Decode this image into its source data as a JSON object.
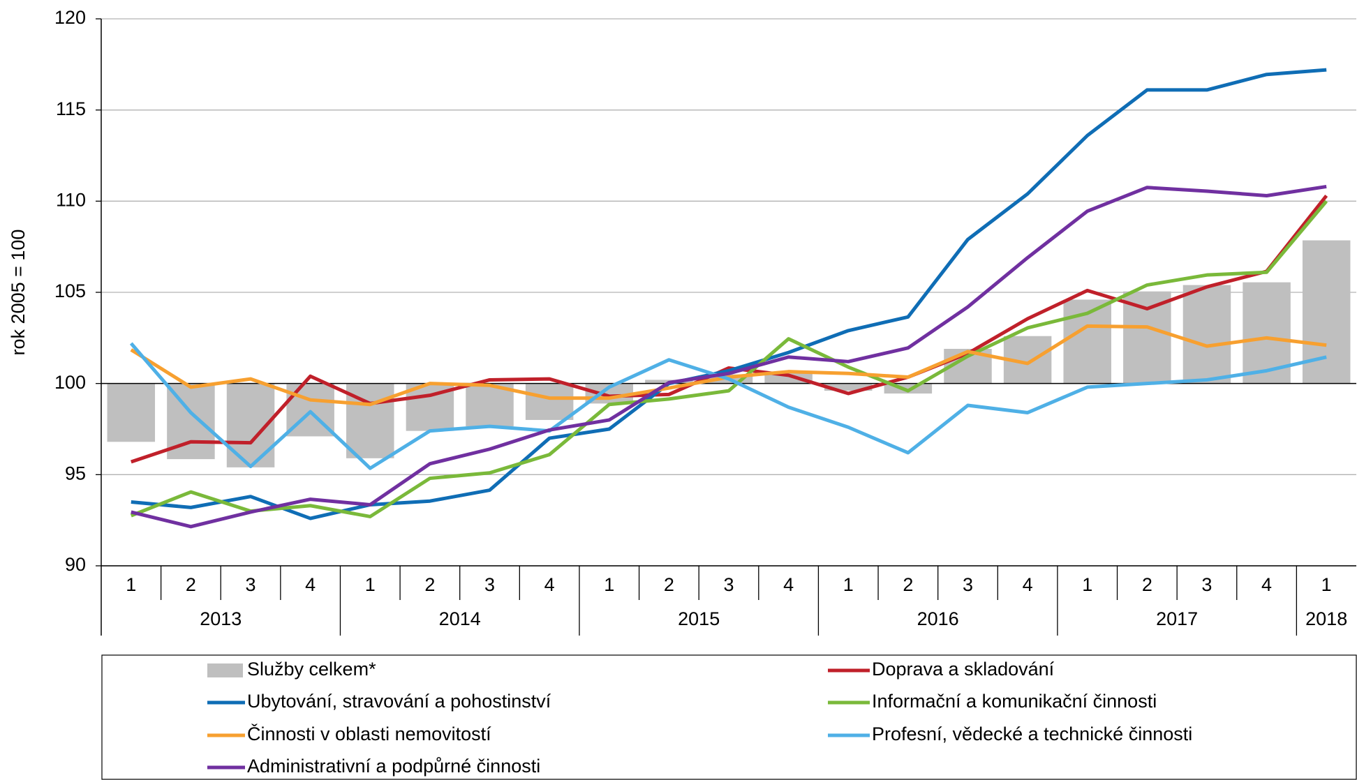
{
  "chart_data": {
    "type": "line",
    "y_label": "rok 2005 = 100",
    "categories": [
      "1",
      "2",
      "3",
      "4",
      "1",
      "2",
      "3",
      "4",
      "1",
      "2",
      "3",
      "4",
      "1",
      "2",
      "3",
      "4",
      "1",
      "2",
      "3",
      "4",
      "1"
    ],
    "groups": [
      "2013",
      "2014",
      "2015",
      "2016",
      "2017",
      "2018"
    ],
    "ylim": [
      90,
      120
    ],
    "yticks": [
      90,
      95,
      100,
      105,
      110,
      115,
      120
    ],
    "grid": true,
    "bar_base": 100,
    "series": [
      {
        "name": "Služby celkem*",
        "type": "bar",
        "color": "#bfbfbf",
        "values": [
          96.8,
          95.85,
          95.4,
          97.1,
          95.9,
          97.4,
          97.65,
          98.0,
          98.9,
          100.2,
          100.5,
          100.6,
          99.6,
          99.45,
          101.9,
          102.6,
          104.6,
          105.05,
          105.4,
          105.55,
          107.85
        ]
      },
      {
        "name": "Doprava a skladování",
        "color": "#c0202a",
        "values": [
          95.7,
          96.8,
          96.75,
          100.4,
          98.9,
          99.35,
          100.2,
          100.25,
          99.3,
          99.4,
          100.85,
          100.45,
          99.45,
          100.35,
          101.65,
          103.55,
          105.1,
          104.1,
          105.3,
          106.15,
          110.3
        ]
      },
      {
        "name": "Ubytování, stravování a pohostinství",
        "color": "#0f6db5",
        "values": [
          93.5,
          93.2,
          93.8,
          92.6,
          93.35,
          93.55,
          94.15,
          97.0,
          97.5,
          100.0,
          100.7,
          101.7,
          102.9,
          103.65,
          107.9,
          110.4,
          113.6,
          116.1,
          116.1,
          116.95,
          117.2
        ]
      },
      {
        "name": "Informační a komunikační činnosti",
        "color": "#7ab93a",
        "values": [
          92.75,
          94.05,
          93.0,
          93.3,
          92.7,
          94.8,
          95.1,
          96.1,
          98.85,
          99.15,
          99.6,
          102.45,
          100.9,
          99.6,
          101.5,
          103.05,
          103.85,
          105.4,
          105.95,
          106.1,
          110.0
        ]
      },
      {
        "name": "Činnosti v oblasti nemovitostí",
        "color": "#f7a030",
        "values": [
          101.85,
          99.8,
          100.25,
          99.1,
          98.85,
          100.0,
          99.9,
          99.2,
          99.2,
          99.75,
          100.35,
          100.65,
          100.55,
          100.35,
          101.75,
          101.1,
          103.15,
          103.1,
          102.05,
          102.5,
          102.1
        ]
      },
      {
        "name": "Profesní, vědecké a technické činnosti",
        "color": "#4fb0e6",
        "values": [
          102.2,
          98.4,
          95.45,
          98.45,
          95.35,
          97.4,
          97.65,
          97.4,
          99.8,
          101.3,
          100.25,
          98.7,
          97.6,
          96.2,
          98.8,
          98.4,
          99.8,
          100.0,
          100.2,
          100.7,
          101.45
        ]
      },
      {
        "name": "Administrativní a podpůrné činnosti",
        "color": "#7030a0",
        "values": [
          92.95,
          92.15,
          92.95,
          93.65,
          93.35,
          95.6,
          96.4,
          97.45,
          98.0,
          100.05,
          100.55,
          101.45,
          101.2,
          101.95,
          104.2,
          106.9,
          109.45,
          110.75,
          110.55,
          110.3,
          110.8
        ]
      }
    ]
  }
}
